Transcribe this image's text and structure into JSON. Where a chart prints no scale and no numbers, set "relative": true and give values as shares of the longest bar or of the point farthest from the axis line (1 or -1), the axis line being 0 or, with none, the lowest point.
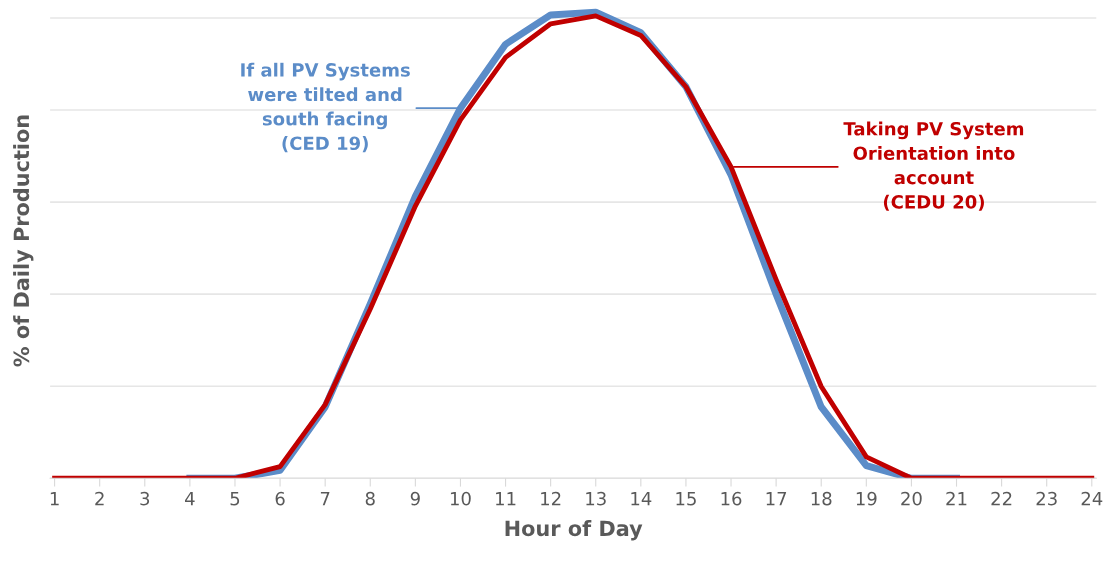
{
  "chart_data": {
    "type": "line",
    "relative": true,
    "xlabel": "Hour of Day",
    "ylabel": "% of Daily Production",
    "categories": [
      "1",
      "2",
      "3",
      "4",
      "5",
      "6",
      "7",
      "8",
      "9",
      "10",
      "11",
      "12",
      "13",
      "14",
      "15",
      "16",
      "17",
      "18",
      "19",
      "20",
      "21",
      "22",
      "23",
      "24"
    ],
    "series": [
      {
        "color": "#5b8cc8",
        "values": [
          null,
          null,
          null,
          0,
          0,
          0.017,
          0.153,
          0.374,
          0.605,
          0.794,
          0.931,
          0.994,
          1,
          0.956,
          0.84,
          0.651,
          0.395,
          0.153,
          0.027,
          0,
          0,
          null,
          null,
          null
        ]
      },
      {
        "color": "#c00000",
        "values": [
          0,
          0,
          0,
          0,
          0,
          0.025,
          0.158,
          0.363,
          0.584,
          0.769,
          0.903,
          0.975,
          0.992,
          0.95,
          0.84,
          0.668,
          0.426,
          0.197,
          0.046,
          0,
          0,
          0,
          0,
          0
        ]
      }
    ],
    "annotations": [
      {
        "text": "If all PV Systems\nwere tilted and\nsouth facing\n(CED 19)",
        "x": "10",
        "y": 0.794
      },
      {
        "text": "Taking PV System\nOrientation into\naccount\n(CEDU 20)",
        "x": "16",
        "y": 0.668
      }
    ],
    "grid": "y",
    "marker": "none",
    "line_style": "solid"
  }
}
